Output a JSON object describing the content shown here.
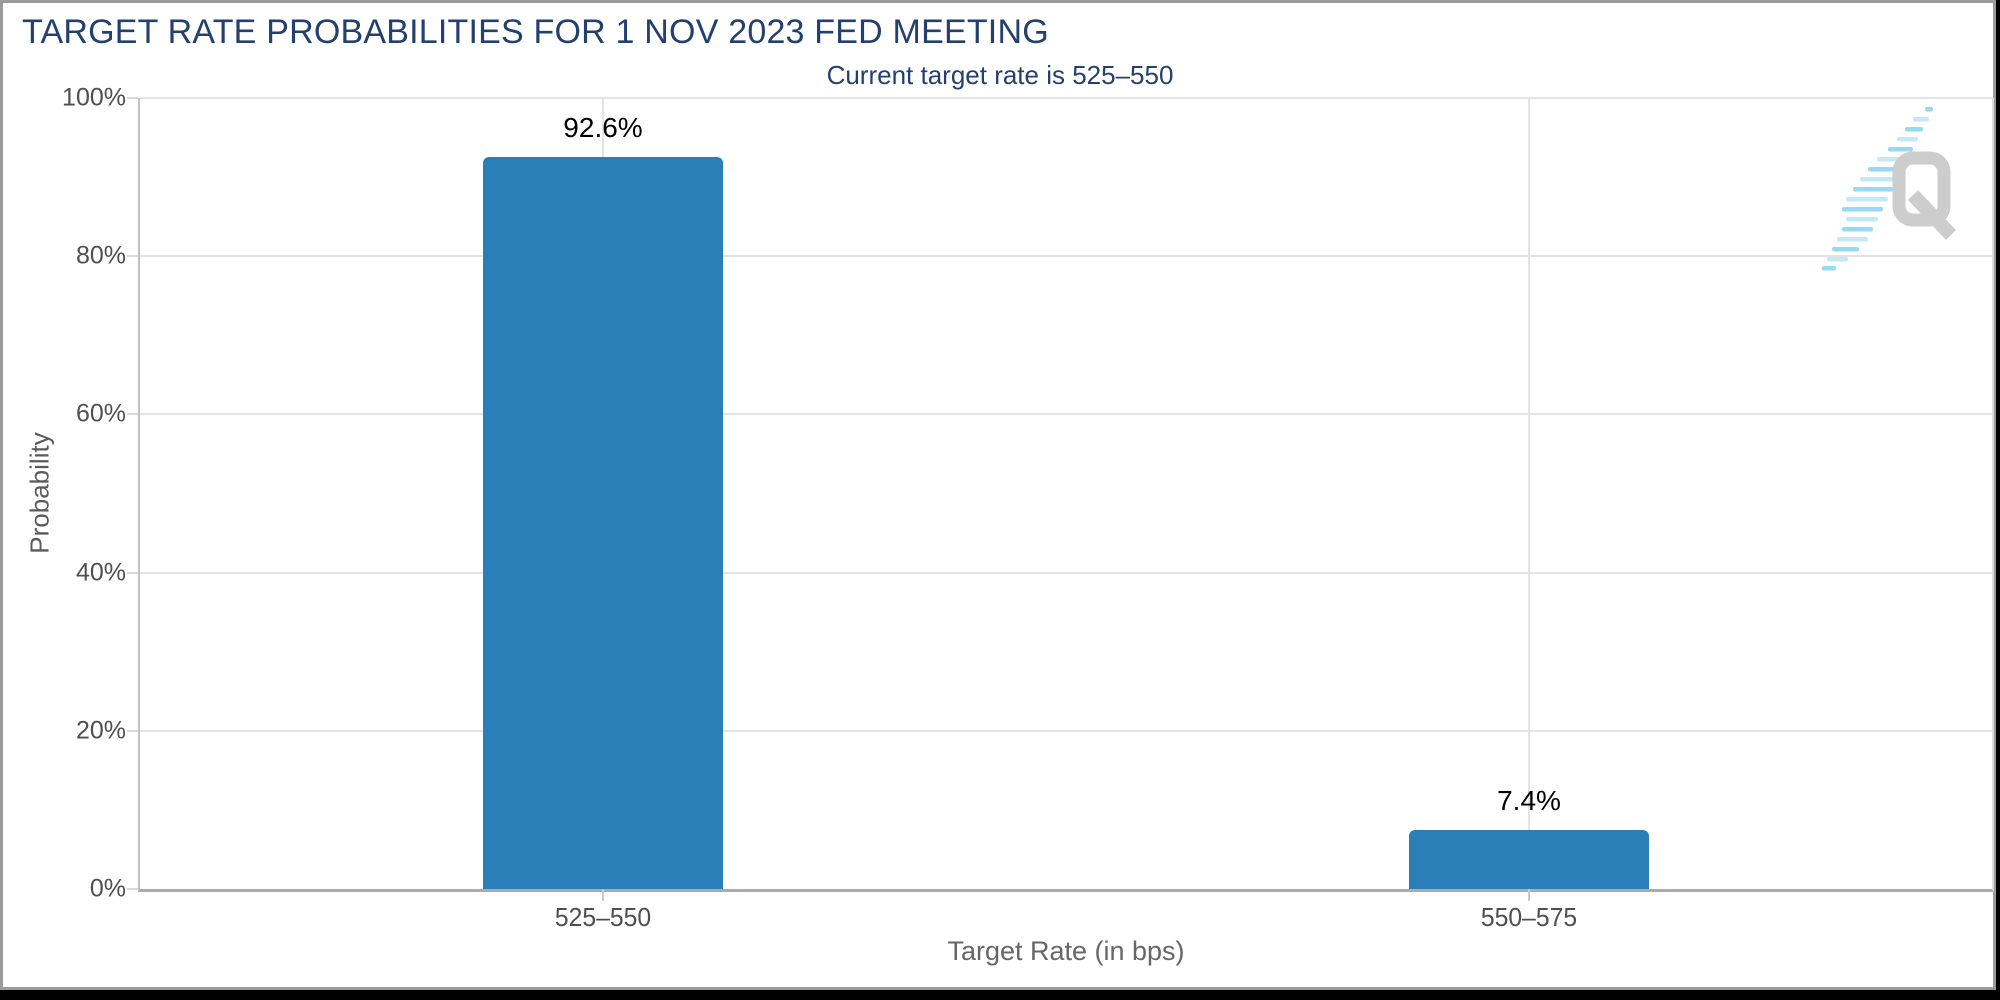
{
  "chart_data": {
    "type": "bar",
    "title": "TARGET RATE PROBABILITIES FOR 1 NOV 2023 FED MEETING",
    "subtitle": "Current target rate is 525–550",
    "categories": [
      "525–550",
      "550–575"
    ],
    "values": [
      92.6,
      7.4
    ],
    "value_labels": [
      "92.6%",
      "7.4%"
    ],
    "xlabel": "Target Rate (in bps)",
    "ylabel": "Probability",
    "ylim": [
      0,
      100
    ],
    "yticks": [
      0,
      20,
      40,
      60,
      80,
      100
    ],
    "ytick_labels": [
      "0%",
      "20%",
      "40%",
      "60%",
      "80%",
      "100%"
    ],
    "grid": true,
    "legend_position": "none",
    "bar_color": "#2B7FB9",
    "title_color": "#24406E",
    "axis_label_color": "#4F4F4F"
  },
  "logo": {
    "letter": "Q"
  }
}
